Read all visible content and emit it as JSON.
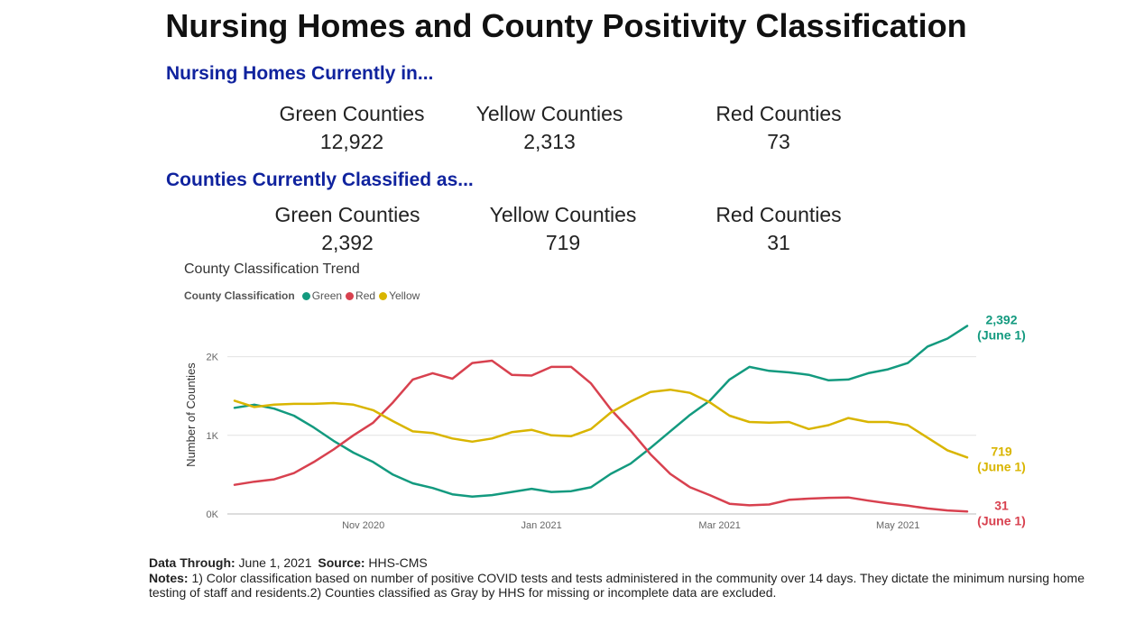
{
  "title": "Nursing Homes and County Positivity Classification",
  "nursing_homes": {
    "heading": "Nursing Homes Currently in...",
    "green_label": "Green Counties",
    "green_value": "12,922",
    "yellow_label": "Yellow Counties",
    "yellow_value": "2,313",
    "red_label": "Red Counties",
    "red_value": "73"
  },
  "counties": {
    "heading": "Counties Currently Classified as...",
    "green_label": "Green Counties",
    "green_value": "2,392",
    "yellow_label": "Yellow Counties",
    "yellow_value": "719",
    "red_label": "Red Counties",
    "red_value": "31"
  },
  "chart_data": {
    "type": "line",
    "title": "County Classification Trend",
    "legend_title": "County Classification",
    "ylabel": "Number of Counties",
    "xlabel": "",
    "ylim": [
      0,
      2400
    ],
    "y_ticks": [
      {
        "value": 0,
        "label": "0K"
      },
      {
        "value": 1000,
        "label": "1K"
      },
      {
        "value": 2000,
        "label": "2K"
      }
    ],
    "x_ticks": [
      {
        "index": 6.5,
        "label": "Nov 2020"
      },
      {
        "index": 15.5,
        "label": "Jan 2021"
      },
      {
        "index": 24.5,
        "label": "Mar 2021"
      },
      {
        "index": 33.5,
        "label": "May 2021"
      }
    ],
    "x_count": 38,
    "series": [
      {
        "name": "Green",
        "color": "#139a7f",
        "end_label": "2,392",
        "end_sublabel": "(June 1)",
        "values": [
          1350,
          1390,
          1340,
          1250,
          1100,
          930,
          780,
          660,
          500,
          390,
          330,
          250,
          220,
          240,
          280,
          320,
          280,
          290,
          340,
          510,
          640,
          840,
          1050,
          1260,
          1440,
          1710,
          1870,
          1820,
          1800,
          1770,
          1700,
          1710,
          1790,
          1840,
          1920,
          2130,
          2230,
          2392
        ]
      },
      {
        "name": "Red",
        "color": "#d8414f",
        "end_label": "31",
        "end_sublabel": "(June 1)",
        "values": [
          370,
          410,
          440,
          520,
          660,
          820,
          1000,
          1160,
          1420,
          1710,
          1790,
          1720,
          1920,
          1950,
          1770,
          1760,
          1870,
          1870,
          1660,
          1330,
          1060,
          760,
          510,
          340,
          240,
          130,
          110,
          120,
          180,
          195,
          205,
          210,
          170,
          135,
          105,
          70,
          45,
          31
        ]
      },
      {
        "name": "Yellow",
        "color": "#d9b500",
        "end_label": "719",
        "end_sublabel": "(June 1)",
        "values": [
          1440,
          1360,
          1390,
          1400,
          1400,
          1410,
          1390,
          1320,
          1180,
          1050,
          1030,
          960,
          920,
          960,
          1040,
          1070,
          1000,
          990,
          1080,
          1290,
          1430,
          1550,
          1580,
          1540,
          1420,
          1250,
          1170,
          1160,
          1170,
          1080,
          1130,
          1220,
          1170,
          1170,
          1130,
          970,
          810,
          719
        ]
      }
    ]
  },
  "footer": {
    "data_through_label": "Data Through:",
    "data_through_value": "June 1, 2021",
    "source_label": "Source:",
    "source_value": "HHS-CMS",
    "notes_label": "Notes:",
    "notes_text": "1) Color classification based on number of positive COVID tests and tests administered in the community over 14 days. They dictate the minimum nursing home testing of staff and residents.2) Counties classified as Gray by HHS for missing or incomplete data are excluded."
  }
}
